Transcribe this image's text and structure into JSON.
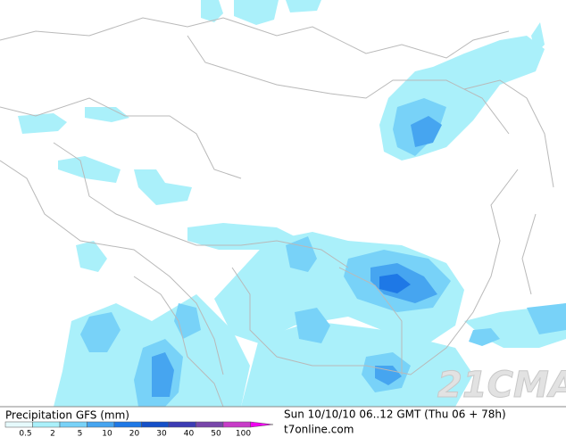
{
  "legend": {
    "title": "Precipitation GFS (mm)",
    "labels": [
      "0.5",
      "2",
      "5",
      "10",
      "20",
      "30",
      "40",
      "50",
      "100"
    ],
    "colors": [
      "#e6fafc",
      "#aaf0fa",
      "#78d2f8",
      "#46a5f0",
      "#1e78e6",
      "#1450c8",
      "#3c3cb4",
      "#7846aa",
      "#c83cc8",
      "#f000f0"
    ]
  },
  "timestamp": "Sun 10/10/10 06..12 GMT (Thu 06 + 78h)",
  "source": "t7online.com",
  "watermark": "21CMA"
}
